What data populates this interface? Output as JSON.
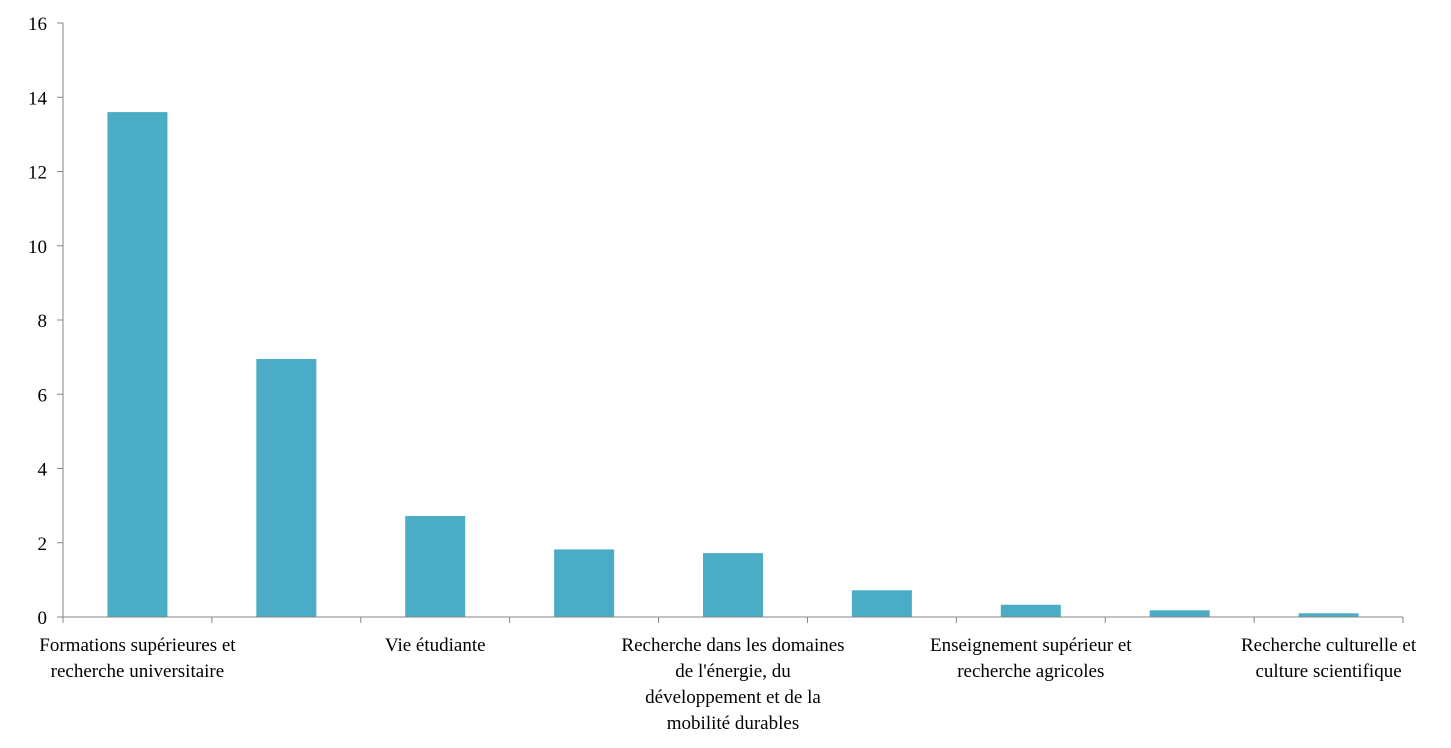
{
  "chart_data": {
    "type": "bar",
    "categories": [
      [
        "Formations supérieures et",
        "recherche universitaire"
      ],
      [],
      [
        "Vie étudiante"
      ],
      [],
      [
        "Recherche dans les domaines",
        "de l'énergie, du",
        "développement et de la",
        "mobilité durables"
      ],
      [],
      [
        "Enseignement supérieur et",
        "recherche agricoles"
      ],
      [],
      [
        "Recherche culturelle et",
        "culture scientifique"
      ]
    ],
    "values": [
      13.6,
      6.95,
      2.72,
      1.82,
      1.72,
      0.72,
      0.33,
      0.18,
      0.1
    ],
    "ylim": [
      0,
      16
    ],
    "yticks": [
      "0",
      "2",
      "4",
      "6",
      "8",
      "10",
      "12",
      "14",
      "16"
    ],
    "xlabel": "",
    "ylabel": "",
    "grid": false,
    "colors": {
      "bar": "#4BACC6",
      "axis": "#868686"
    }
  }
}
